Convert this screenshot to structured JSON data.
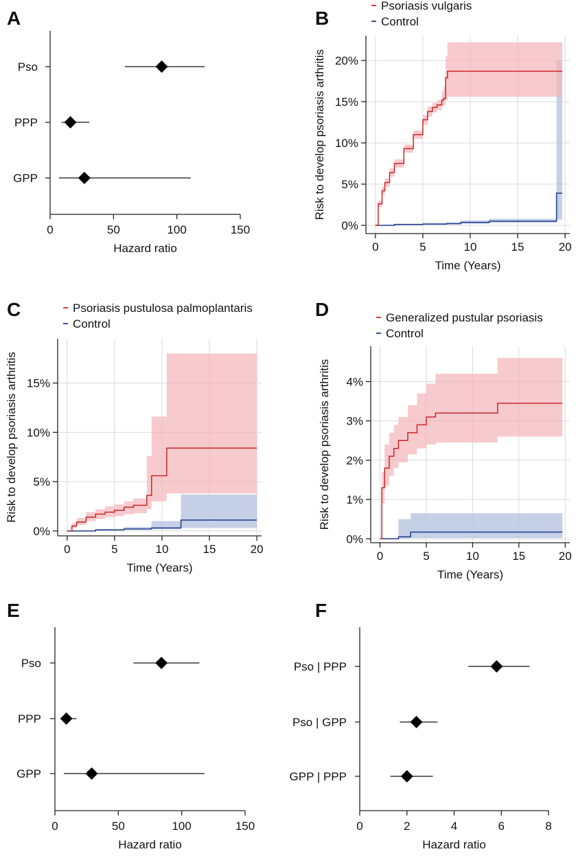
{
  "panels": {
    "A": {
      "letter": "A"
    },
    "B": {
      "letter": "B"
    },
    "C": {
      "letter": "C"
    },
    "D": {
      "letter": "D"
    },
    "E": {
      "letter": "E"
    },
    "F": {
      "letter": "F"
    }
  },
  "colors": {
    "case": "#c62828",
    "case_band": "#f4b3b8",
    "control": "#1f3a8a",
    "control_band": "#b7c4e0",
    "axis": "#222222",
    "grid": "#d9d9d9"
  },
  "chart_data": [
    {
      "id": "A",
      "type": "forest",
      "xlabel": "Hazard ratio",
      "xlim": [
        0,
        150
      ],
      "xticks": [
        0,
        50,
        100,
        150
      ],
      "rows": [
        {
          "label": "Pso",
          "hr": 88,
          "lo": 59,
          "hi": 122
        },
        {
          "label": "PPP",
          "hr": 16,
          "lo": 9,
          "hi": 31
        },
        {
          "label": "GPP",
          "hr": 27,
          "lo": 7,
          "hi": 111
        }
      ]
    },
    {
      "id": "B",
      "type": "line",
      "xlabel": "Time (Years)",
      "ylabel": "Risk to develop psoriasis arthritis",
      "xlim": [
        -1,
        20.5
      ],
      "xticks": [
        0,
        5,
        10,
        15,
        20
      ],
      "ylim": [
        -1,
        23
      ],
      "yticks": [
        0,
        5,
        10,
        15,
        20
      ],
      "ytick_labels": [
        "0%",
        "5%",
        "10%",
        "15%",
        "20%"
      ],
      "legend": [
        "Psoriasis vulgaris",
        "Control"
      ],
      "series": [
        {
          "name": "Psoriasis vulgaris",
          "x": [
            0,
            0.3,
            0.7,
            1,
            1.5,
            2,
            3,
            4,
            5,
            5.5,
            6,
            6.5,
            7,
            7.2,
            7.4,
            7.6,
            19.7
          ],
          "y": [
            0,
            2.6,
            4.2,
            5.2,
            6.4,
            7.5,
            9.3,
            11,
            12.8,
            13.8,
            14.3,
            14.6,
            15.2,
            15.4,
            17.9,
            18.7,
            18.7
          ],
          "lo": [
            0,
            2.2,
            3.7,
            4.7,
            5.9,
            7,
            8.8,
            10.5,
            12.2,
            13.2,
            13.7,
            14,
            14.4,
            14.6,
            15.2,
            15.6,
            15.6
          ],
          "hi": [
            0,
            3,
            4.7,
            5.7,
            6.9,
            8,
            9.8,
            11.5,
            13.4,
            14.4,
            14.9,
            15.2,
            16.3,
            16.8,
            20.5,
            22.2,
            22.2
          ]
        },
        {
          "name": "Control",
          "x": [
            0,
            2,
            5,
            7.5,
            9,
            12,
            19,
            19.1,
            19.7
          ],
          "y": [
            0,
            0.1,
            0.15,
            0.2,
            0.35,
            0.5,
            0.5,
            3.9,
            3.9
          ],
          "lo": [
            0,
            0.05,
            0.1,
            0.12,
            0.2,
            0.3,
            0.3,
            0.7,
            0.7
          ],
          "hi": [
            0,
            0.2,
            0.3,
            0.4,
            0.6,
            0.8,
            0.8,
            20,
            20
          ]
        }
      ]
    },
    {
      "id": "C",
      "type": "line",
      "xlabel": "Time (Years)",
      "ylabel": "Risk to develop psoriasis arthritis",
      "xlim": [
        -1,
        20.5
      ],
      "xticks": [
        0,
        5,
        10,
        15,
        20
      ],
      "ylim": [
        -0.5,
        19.5
      ],
      "yticks": [
        0,
        5,
        10,
        15
      ],
      "ytick_labels": [
        "0%",
        "5%",
        "10%",
        "15%"
      ],
      "legend": [
        "Psoriasis pustulosa palmoplantaris",
        "Control"
      ],
      "series": [
        {
          "name": "Psoriasis pustulosa palmoplantaris",
          "x": [
            0,
            0.5,
            1,
            2,
            3,
            4,
            5,
            6,
            7,
            8.4,
            8.9,
            10.5,
            20
          ],
          "y": [
            0,
            0.5,
            0.9,
            1.4,
            1.7,
            1.9,
            2.1,
            2.4,
            2.6,
            3.6,
            5.6,
            8.4,
            8.4
          ],
          "lo": [
            0,
            0.3,
            0.6,
            1,
            1.2,
            1.4,
            1.5,
            1.7,
            1.8,
            2.2,
            3,
            3.8,
            3.8
          ],
          "hi": [
            0,
            0.8,
            1.3,
            1.9,
            2.2,
            2.5,
            2.7,
            3,
            3.3,
            7.6,
            11.6,
            18,
            18
          ]
        },
        {
          "name": "Control",
          "x": [
            0,
            3,
            6,
            8.9,
            12,
            20
          ],
          "y": [
            0,
            0.1,
            0.2,
            0.3,
            1.1,
            1.1
          ],
          "lo": [
            0,
            0.05,
            0.1,
            0.15,
            0.3,
            0.3
          ],
          "hi": [
            0,
            0.2,
            0.4,
            1,
            3.7,
            3.7
          ]
        }
      ]
    },
    {
      "id": "D",
      "type": "line",
      "xlabel": "Time (Years)",
      "ylabel": "Risk to develop psoriasis arthritis",
      "xlim": [
        -1,
        20.5
      ],
      "xticks": [
        0,
        5,
        10,
        15,
        20
      ],
      "ylim": [
        -0.1,
        4.9
      ],
      "yticks": [
        0,
        1,
        2,
        3,
        4
      ],
      "ytick_labels": [
        "0%",
        "1%",
        "2%",
        "3%",
        "4%"
      ],
      "legend": [
        "Generalized pustular psoriasis",
        "Control"
      ],
      "series": [
        {
          "name": "Generalized pustular psoriasis",
          "x": [
            0,
            0.2,
            0.5,
            1,
            1.5,
            2,
            3,
            4,
            5,
            6,
            12.7,
            19.7
          ],
          "y": [
            0,
            1.3,
            1.8,
            2.1,
            2.3,
            2.5,
            2.7,
            2.9,
            3.1,
            3.2,
            3.45,
            3.45
          ],
          "lo": [
            0,
            0.9,
            1.35,
            1.6,
            1.8,
            1.95,
            2.15,
            2.3,
            2.4,
            2.45,
            2.6,
            2.6
          ],
          "hi": [
            0,
            1.7,
            2.4,
            2.7,
            2.9,
            3.1,
            3.4,
            3.7,
            3.95,
            4.2,
            4.6,
            4.6
          ]
        },
        {
          "name": "Control",
          "x": [
            0,
            2,
            3.3,
            19.7
          ],
          "y": [
            0,
            0.05,
            0.17,
            0.17
          ],
          "lo": [
            0,
            0,
            0.02,
            0.02
          ],
          "hi": [
            0,
            0.5,
            0.65,
            0.65
          ]
        }
      ]
    },
    {
      "id": "E",
      "type": "forest",
      "xlabel": "Hazard ratio",
      "xlim": [
        0,
        150
      ],
      "xticks": [
        0,
        50,
        100,
        150
      ],
      "rows": [
        {
          "label": "Pso",
          "hr": 84,
          "lo": 62,
          "hi": 114
        },
        {
          "label": "PPP",
          "hr": 9,
          "lo": 5,
          "hi": 17
        },
        {
          "label": "GPP",
          "hr": 29,
          "lo": 7,
          "hi": 118
        }
      ]
    },
    {
      "id": "F",
      "type": "forest",
      "xlabel": "Hazard ratio",
      "xlim": [
        0,
        8
      ],
      "xticks": [
        0,
        2,
        4,
        6,
        8
      ],
      "rows": [
        {
          "label": "Pso | PPP",
          "hr": 5.8,
          "lo": 4.6,
          "hi": 7.2
        },
        {
          "label": "Pso | GPP",
          "hr": 2.4,
          "lo": 1.7,
          "hi": 3.3
        },
        {
          "label": "GPP | PPP",
          "hr": 2.0,
          "lo": 1.3,
          "hi": 3.1
        }
      ]
    }
  ]
}
